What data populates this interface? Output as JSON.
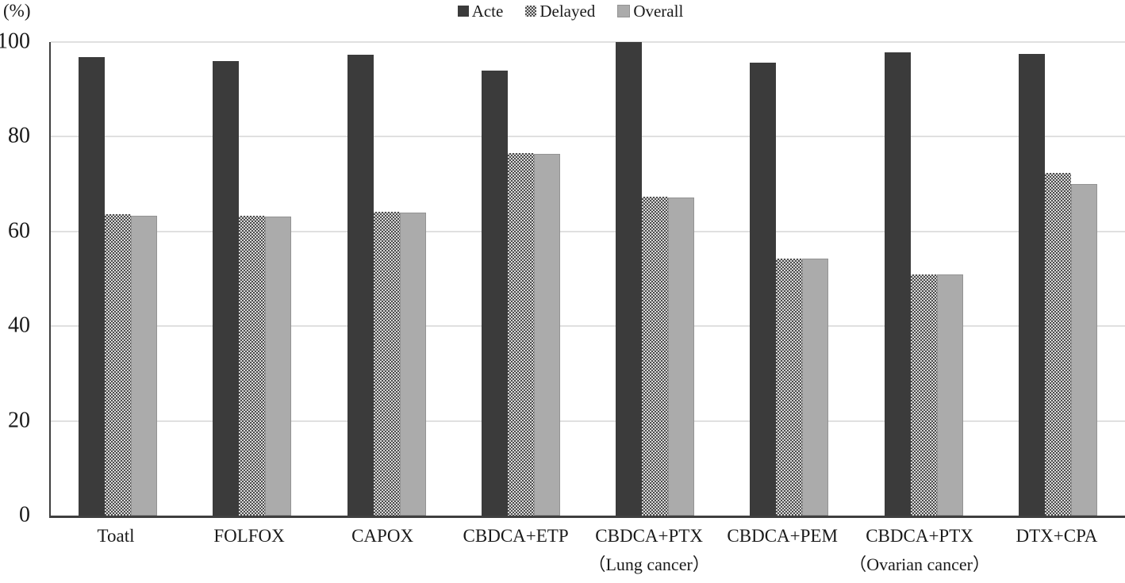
{
  "chart_data": {
    "type": "bar",
    "title": "",
    "unit": "(%)",
    "xlabel": "",
    "ylabel": "",
    "ylim": [
      0,
      100
    ],
    "yticks": [
      0,
      20,
      40,
      60,
      80,
      100
    ],
    "grid": true,
    "legend_position": "top-center",
    "categories": [
      "Toatl",
      "FOLFOX",
      "CAPOX",
      "CBDCA+ETP",
      "CBDCA+PTX",
      "CBDCA+PEM",
      "CBDCA+PTX",
      "DTX+CPA"
    ],
    "category_sublabels": [
      "",
      "",
      "",
      "",
      "（Lung cancer）",
      "",
      "（Ovarian  cancer）",
      ""
    ],
    "series": [
      {
        "name": "Acte",
        "pattern": "solid",
        "color": "#3b3b3b",
        "values": [
          96.8,
          96.0,
          97.3,
          94.0,
          100,
          95.7,
          97.8,
          97.5
        ]
      },
      {
        "name": "Delayed",
        "pattern": "checker",
        "color_dark": "#4c4c4c",
        "color_light": "#d8d8d8",
        "values": [
          63.7,
          63.3,
          64.1,
          76.5,
          67.3,
          54.3,
          51.0,
          72.4
        ]
      },
      {
        "name": "Overall",
        "pattern": "solid",
        "color": "#ababab",
        "border_color": "#939393",
        "values": [
          63.4,
          63.2,
          64.0,
          76.4,
          67.2,
          54.2,
          51.0,
          70.0
        ]
      }
    ],
    "colors": {
      "axis": "#3f3f3f",
      "gridline": "#e0e0e0",
      "text": "#1a1a1a"
    }
  }
}
